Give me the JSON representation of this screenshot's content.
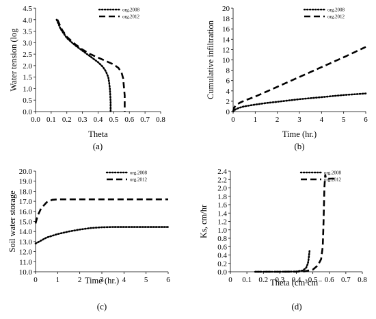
{
  "chart_data": [
    {
      "panel_label": "(a)",
      "type": "line",
      "xlabel": "Theta",
      "ylabel": "Water tension (log",
      "xlim": [
        0,
        0.8
      ],
      "ylim": [
        0,
        4.5
      ],
      "xticks": [
        "0.0",
        "0.1",
        "0.2",
        "0.3",
        "0.4",
        "0.5",
        "0.6",
        "0.7",
        "0.8"
      ],
      "yticks": [
        "0.0",
        "0.5",
        "1.0",
        "1.5",
        "2.0",
        "2.5",
        "3.0",
        "3.5",
        "4.0",
        "4.5"
      ],
      "legend_position": "top-right",
      "series": [
        {
          "name": "org.2008",
          "style": "dotted",
          "x": [
            0.135,
            0.16,
            0.2,
            0.25,
            0.3,
            0.35,
            0.4,
            0.43,
            0.45,
            0.465,
            0.47,
            0.475,
            0.478,
            0.48,
            0.48,
            0.48
          ],
          "y": [
            4.0,
            3.6,
            3.2,
            2.9,
            2.65,
            2.4,
            2.15,
            1.95,
            1.75,
            1.5,
            1.3,
            1.0,
            0.7,
            0.4,
            0.2,
            0.0
          ]
        },
        {
          "name": "org.2012",
          "style": "dashed",
          "x": [
            0.14,
            0.17,
            0.2,
            0.25,
            0.3,
            0.35,
            0.4,
            0.45,
            0.5,
            0.53,
            0.55,
            0.56,
            0.565,
            0.57,
            0.57,
            0.57
          ],
          "y": [
            4.0,
            3.55,
            3.25,
            2.95,
            2.7,
            2.5,
            2.35,
            2.2,
            2.05,
            1.9,
            1.7,
            1.45,
            1.1,
            0.7,
            0.3,
            0.0
          ]
        }
      ]
    },
    {
      "panel_label": "(b)",
      "type": "line",
      "xlabel": "Time (hr.)",
      "ylabel": "Cumulative infiltration",
      "xlim": [
        0,
        6
      ],
      "ylim": [
        0,
        20
      ],
      "xticks": [
        "0",
        "1",
        "2",
        "3",
        "4",
        "5",
        "6"
      ],
      "yticks": [
        "0",
        "2",
        "4",
        "6",
        "8",
        "10",
        "12",
        "14",
        "16",
        "18",
        "20"
      ],
      "legend_position": "top-right",
      "series": [
        {
          "name": "org.2008",
          "style": "dotted",
          "x": [
            0,
            0.1,
            0.25,
            0.5,
            1,
            1.5,
            2,
            3,
            4,
            5,
            6
          ],
          "y": [
            0,
            0.4,
            0.7,
            1.0,
            1.35,
            1.65,
            1.9,
            2.4,
            2.8,
            3.2,
            3.5
          ]
        },
        {
          "name": "org.2012",
          "style": "dashed",
          "x": [
            0,
            0.05,
            0.15,
            0.3,
            0.5,
            1,
            2,
            3,
            4,
            5,
            6
          ],
          "y": [
            0,
            0.8,
            1.3,
            1.7,
            2.1,
            2.9,
            4.8,
            6.7,
            8.6,
            10.5,
            12.5
          ]
        }
      ]
    },
    {
      "panel_label": "(c)",
      "type": "line",
      "xlabel": "Time (hr.)",
      "ylabel": "Soil water storage",
      "xlim": [
        0,
        6
      ],
      "ylim": [
        10,
        20
      ],
      "xticks": [
        "0",
        "1",
        "2",
        "3",
        "4",
        "5",
        "6"
      ],
      "yticks": [
        "10.0",
        "11.0",
        "12.0",
        "13.0",
        "14.0",
        "15.0",
        "16.0",
        "17.0",
        "18.0",
        "19.0",
        "20.0"
      ],
      "legend_position": "top-right",
      "series": [
        {
          "name": "org.2008",
          "style": "dotted",
          "x": [
            0,
            0.25,
            0.5,
            1,
            1.5,
            2,
            2.5,
            3,
            3.5,
            4,
            5,
            6
          ],
          "y": [
            12.8,
            13.1,
            13.4,
            13.75,
            14.0,
            14.2,
            14.35,
            14.42,
            14.45,
            14.45,
            14.45,
            14.45
          ]
        },
        {
          "name": "org.2012",
          "style": "dashed",
          "x": [
            0,
            0.1,
            0.25,
            0.5,
            0.75,
            1,
            1.5,
            2,
            3,
            4,
            5,
            6
          ],
          "y": [
            14.8,
            15.6,
            16.3,
            16.9,
            17.15,
            17.2,
            17.2,
            17.2,
            17.2,
            17.2,
            17.2,
            17.2
          ]
        }
      ]
    },
    {
      "panel_label": "(d)",
      "type": "line",
      "xlabel": "Theta (cm³cm⁻",
      "ylabel": "Ks, cm/hr",
      "xlim": [
        0,
        0.8
      ],
      "ylim": [
        0,
        2.4
      ],
      "xticks": [
        "0",
        "0.1",
        "0.2",
        "0.3",
        "0.4",
        "0.5",
        "0.6",
        "0.7",
        "0.8"
      ],
      "yticks": [
        "0.0",
        "0.2",
        "0.4",
        "0.6",
        "0.8",
        "1.0",
        "1.2",
        "1.4",
        "1.6",
        "1.8",
        "2.0",
        "2.2",
        "2.4"
      ],
      "legend_position": "top-right",
      "series": [
        {
          "name": "org.2008",
          "style": "dotted",
          "x": [
            0.15,
            0.3,
            0.4,
            0.44,
            0.46,
            0.47,
            0.475,
            0.478,
            0.48
          ],
          "y": [
            0,
            0,
            0.005,
            0.03,
            0.1,
            0.2,
            0.32,
            0.43,
            0.5
          ]
        },
        {
          "name": "org.2012",
          "style": "dashed",
          "x": [
            0.15,
            0.3,
            0.4,
            0.45,
            0.5,
            0.53,
            0.55,
            0.56,
            0.565,
            0.57,
            0.575,
            0.58,
            0.6,
            0.65
          ],
          "y": [
            0,
            0,
            0.002,
            0.01,
            0.05,
            0.15,
            0.3,
            0.6,
            1.2,
            2.0,
            2.32,
            2.22,
            2.22,
            2.22
          ]
        }
      ]
    }
  ]
}
